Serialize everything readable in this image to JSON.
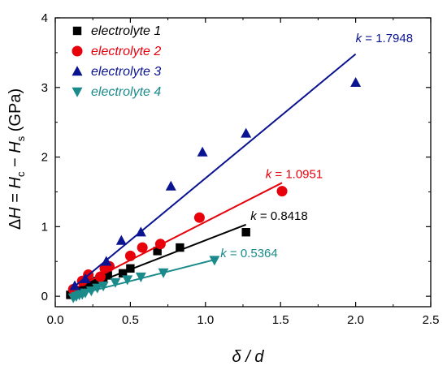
{
  "chart_data": {
    "type": "scatter",
    "xlabel": "δ / d",
    "ylabel": "ΔH = Hc − Hs (GPa)",
    "xlim": [
      0.0,
      2.5
    ],
    "ylim": [
      -0.15,
      4.0
    ],
    "x_ticks": [
      "0.0",
      "0.5",
      "1.0",
      "1.5",
      "2.0",
      "2.5"
    ],
    "y_ticks": [
      "0",
      "1",
      "2",
      "3",
      "4"
    ],
    "grid": false,
    "legend_position": "top-left",
    "series": [
      {
        "name": "electrolyte 1",
        "color": "#000000",
        "marker": "square",
        "x": [
          0.1,
          0.16,
          0.19,
          0.22,
          0.25,
          0.28,
          0.32,
          0.35,
          0.45,
          0.5,
          0.68,
          0.83,
          1.27
        ],
        "y": [
          0.02,
          0.08,
          0.12,
          0.15,
          0.2,
          0.22,
          0.27,
          0.3,
          0.33,
          0.4,
          0.65,
          0.7,
          0.92
        ],
        "fit_x": [
          0.1,
          1.27
        ],
        "fit_y": [
          0.05,
          1.03
        ],
        "k_label": "k = 0.8418"
      },
      {
        "name": "electrolyte 2",
        "color": "#e8000b",
        "marker": "circle",
        "x": [
          0.12,
          0.18,
          0.22,
          0.3,
          0.33,
          0.36,
          0.5,
          0.58,
          0.7,
          0.96,
          1.51
        ],
        "y": [
          0.1,
          0.22,
          0.31,
          0.28,
          0.4,
          0.43,
          0.58,
          0.7,
          0.75,
          1.13,
          1.51
        ],
        "fit_x": [
          0.1,
          1.51
        ],
        "fit_y": [
          0.08,
          1.63
        ],
        "k_label": "k = 1.0951"
      },
      {
        "name": "electrolyte 3",
        "color": "#0b1490",
        "marker": "triangle-up",
        "x": [
          0.13,
          0.2,
          0.34,
          0.44,
          0.57,
          0.77,
          0.98,
          1.27,
          2.0
        ],
        "y": [
          0.15,
          0.25,
          0.5,
          0.8,
          0.92,
          1.58,
          2.07,
          2.34,
          3.07
        ],
        "fit_x": [
          0.1,
          2.0
        ],
        "fit_y": [
          0.09,
          3.48
        ],
        "k_label": "k = 1.7948"
      },
      {
        "name": "electrolyte 4",
        "color": "#1a8a8a",
        "marker": "triangle-down",
        "x": [
          0.12,
          0.14,
          0.16,
          0.18,
          0.2,
          0.24,
          0.28,
          0.32,
          0.4,
          0.48,
          0.57,
          0.72,
          1.06
        ],
        "y": [
          -0.02,
          0.0,
          0.02,
          0.03,
          0.05,
          0.08,
          0.12,
          0.15,
          0.2,
          0.24,
          0.28,
          0.34,
          0.52
        ],
        "fit_x": [
          0.1,
          1.07
        ],
        "fit_y": [
          0.0,
          0.53
        ],
        "k_label": "k = 0.5364"
      }
    ]
  }
}
